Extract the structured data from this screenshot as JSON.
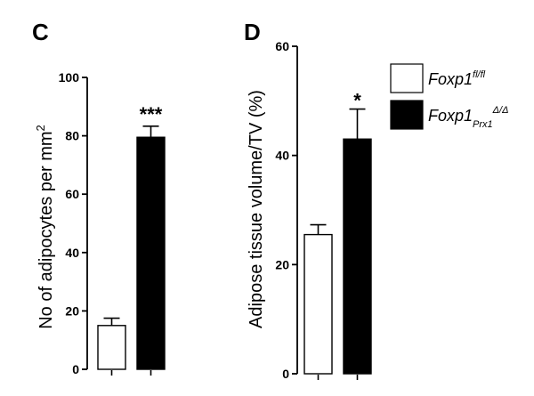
{
  "chart_data": [
    {
      "panel": "C",
      "type": "bar",
      "ylabel": "No of adipocytes per mm",
      "ylabel_sup": "2",
      "ylim": [
        0,
        100
      ],
      "yticks": [
        0,
        20,
        40,
        60,
        80,
        100
      ],
      "grid": false,
      "series": [
        {
          "name": "Foxp1fl/fl",
          "value": 15,
          "error": 2.5,
          "fill": "#ffffff"
        },
        {
          "name": "Foxp1Prx1Δ/Δ",
          "value": 79.5,
          "error": 3.8,
          "fill": "#000000"
        }
      ],
      "annotation": "***"
    },
    {
      "panel": "D",
      "type": "bar",
      "ylabel": "Adipose tissue volume/TV (%)",
      "ylim": [
        0,
        60
      ],
      "yticks": [
        0,
        20,
        40,
        60
      ],
      "grid": false,
      "series": [
        {
          "name": "Foxp1fl/fl",
          "value": 25.5,
          "error": 1.8,
          "fill": "#ffffff"
        },
        {
          "name": "Foxp1Prx1Δ/Δ",
          "value": 43,
          "error": 5.5,
          "fill": "#000000"
        }
      ],
      "annotation": "*"
    }
  ],
  "legend": {
    "placement": "top-right",
    "items": [
      {
        "label": "Foxp1",
        "sup": "fl/fl",
        "sub": "",
        "fill": "#ffffff"
      },
      {
        "label": "Foxp1",
        "sup": "Δ/Δ",
        "sub": "Prx1",
        "fill": "#000000"
      }
    ]
  }
}
